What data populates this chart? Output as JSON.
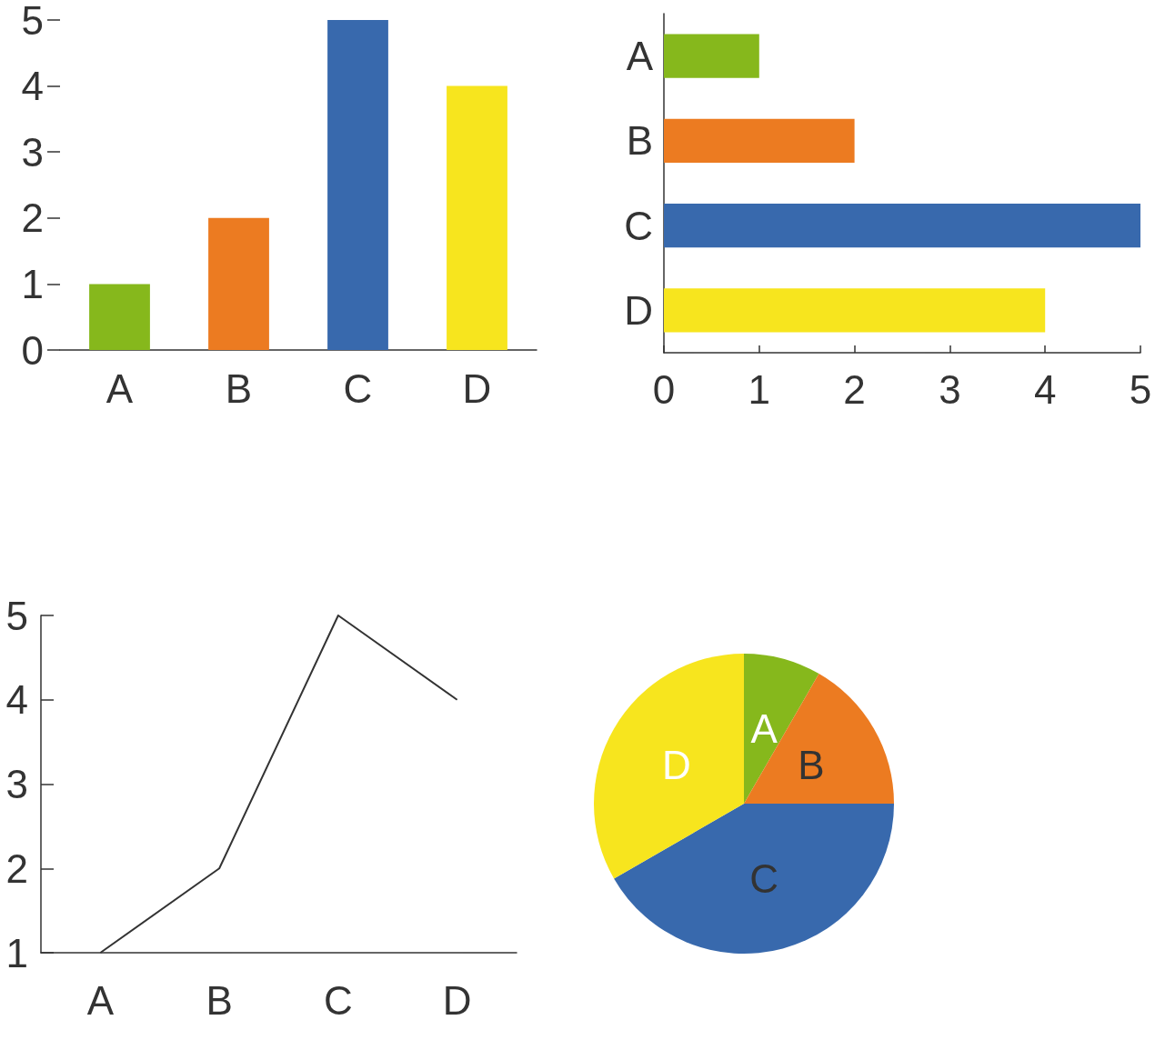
{
  "chart_data": [
    {
      "type": "bar",
      "categories": [
        "A",
        "B",
        "C",
        "D"
      ],
      "colors": [
        "#86b81c",
        "#ec7b21",
        "#3869ad",
        "#f7e51e"
      ],
      "values": [
        1,
        2,
        5,
        4
      ],
      "ylim": [
        0,
        5
      ],
      "yticks": [
        0,
        1,
        2,
        3,
        4,
        5
      ],
      "grid": false
    },
    {
      "type": "bar",
      "orientation": "horizontal",
      "categories": [
        "A",
        "B",
        "C",
        "D"
      ],
      "colors": [
        "#86b81c",
        "#ec7b21",
        "#3869ad",
        "#f7e51e"
      ],
      "values": [
        1,
        2,
        5,
        4
      ],
      "xlim": [
        0,
        5
      ],
      "xticks": [
        0,
        1,
        2,
        3,
        4,
        5
      ],
      "grid": false
    },
    {
      "type": "line",
      "categories": [
        "A",
        "B",
        "C",
        "D"
      ],
      "series": [
        {
          "color": "#333333",
          "values": [
            1,
            2,
            5,
            4
          ]
        }
      ],
      "ylim": [
        1,
        5
      ],
      "yticks": [
        1,
        2,
        3,
        4,
        5
      ],
      "grid": false,
      "marker": "none"
    },
    {
      "type": "pie",
      "categories": [
        "A",
        "B",
        "C",
        "D"
      ],
      "colors": [
        "#86b81c",
        "#ec7b21",
        "#3869ad",
        "#f7e51e"
      ],
      "values": [
        8.33,
        16.67,
        41.67,
        33.33
      ]
    }
  ]
}
